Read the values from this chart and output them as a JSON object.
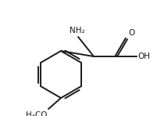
{
  "bg_color": "#ffffff",
  "line_color": "#1a1a1a",
  "line_width": 1.4,
  "font_size": 7.5,
  "figsize": [
    1.92,
    1.48
  ],
  "dpi": 100,
  "NH2_label": "NH₂",
  "O_label": "O",
  "OH_label": "OH",
  "OCH3_label": "H₃CO"
}
